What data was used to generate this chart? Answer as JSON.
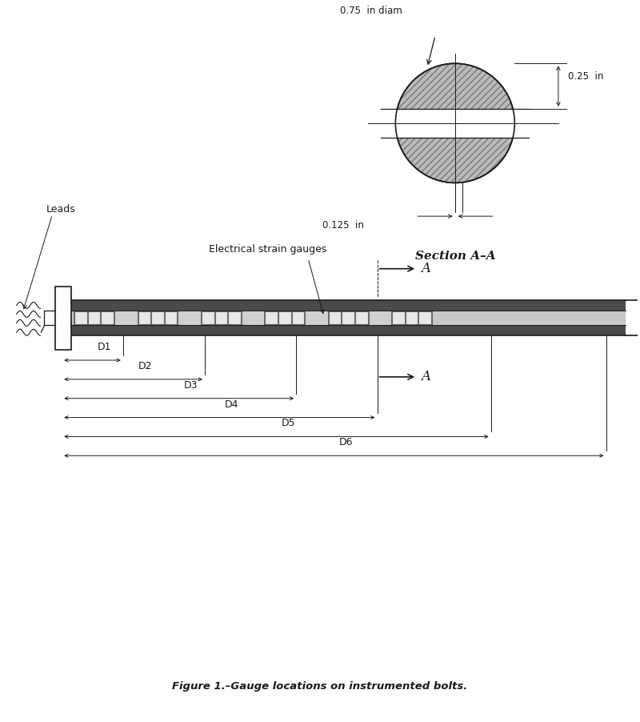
{
  "fig_width": 8.0,
  "fig_height": 9.02,
  "bg_color": "#ffffff",
  "line_color": "#1a1a1a",
  "title": "Figure 1.–Gauge locations on instrumented bolts.",
  "section_label": "Section A–A",
  "dim_labels": [
    "D1",
    "D2",
    "D3",
    "D4",
    "D5",
    "D6"
  ],
  "annotation_leads": "Leads",
  "annotation_gauges": "Electrical strain gauges",
  "dim_075": "0.75  in diam",
  "dim_025": "0.25  in",
  "dim_0125": "0.125  in",
  "bolt_gray": "#888888",
  "bolt_dark": "#333333",
  "bolt_mid": "#aaaaaa",
  "gauge_dark": "#666666",
  "gauge_light": "#cccccc",
  "hatch_gray": "#bbbbbb"
}
